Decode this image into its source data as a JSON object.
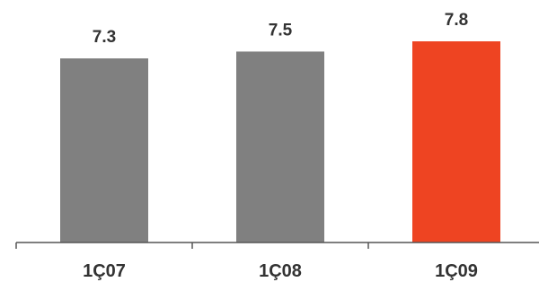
{
  "chart_data": {
    "type": "bar",
    "categories": [
      "1Ç07",
      "1Ç08",
      "1Ç09"
    ],
    "values": [
      7.3,
      7.5,
      7.8
    ],
    "value_labels": [
      "7.3",
      "7.5",
      "7.8"
    ],
    "title": "",
    "xlabel": "",
    "ylabel": "",
    "grid": false,
    "legend": "none",
    "colors": [
      "#808080",
      "#808080",
      "#ee4422"
    ],
    "axis_color": "#555555",
    "label_color": "#333333"
  }
}
